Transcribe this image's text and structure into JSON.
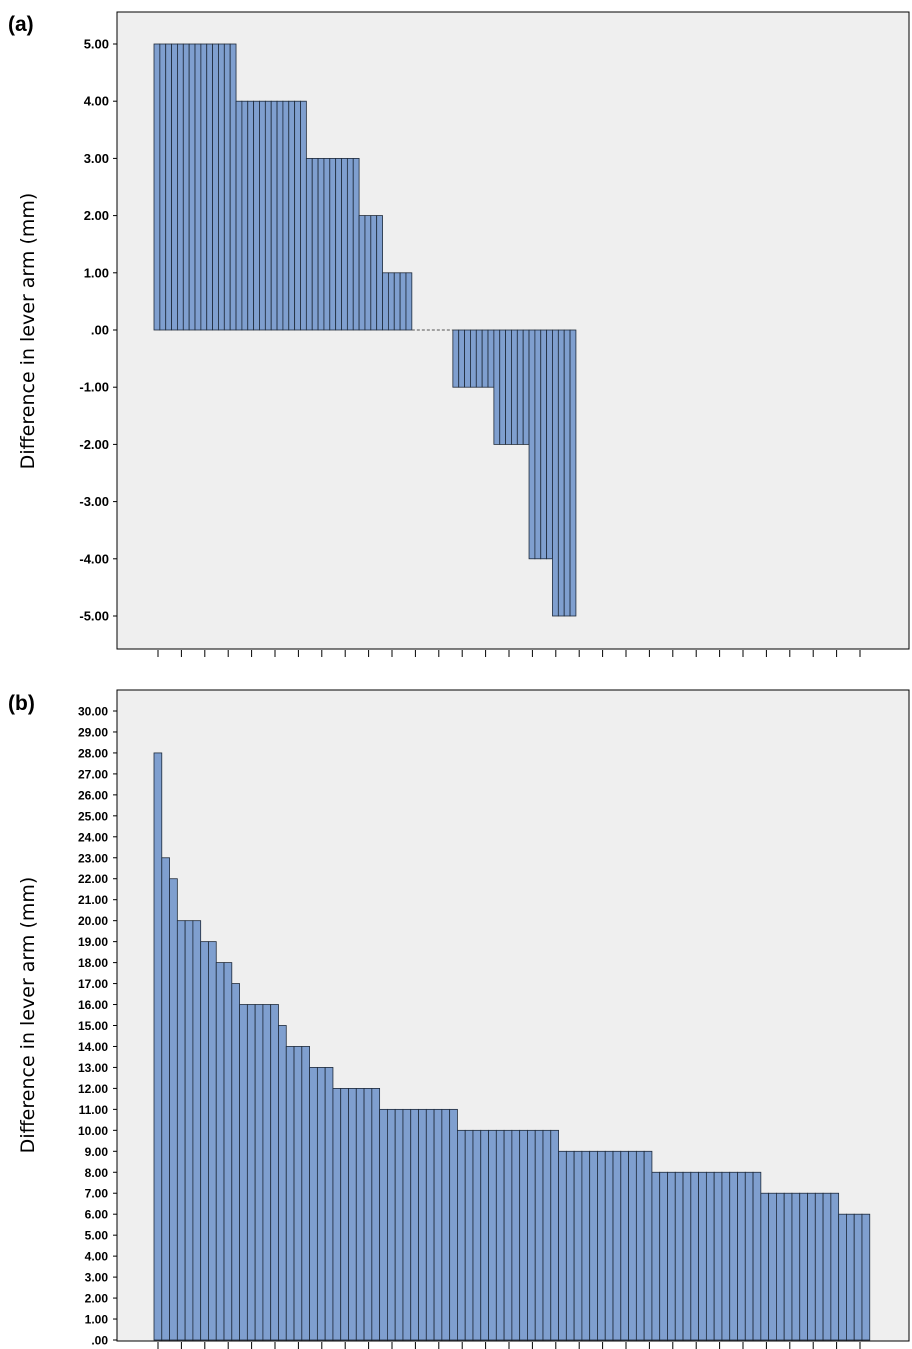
{
  "chart_data": [
    {
      "panel_label": "(a)",
      "type": "bar",
      "ylabel": "Difference in lever arm (mm)",
      "xlabel": "",
      "ylim": [
        -5,
        5
      ],
      "yticks": [
        "5.00",
        "4.00",
        "3.00",
        "2.00",
        "1.00",
        ".00",
        "-1.00",
        "-2.00",
        "-3.00",
        "-4.00",
        "-5.00"
      ],
      "grid": false,
      "legend": "none",
      "bar_color": "#7f9fcf",
      "background_color": "#efefef",
      "values": [
        5,
        5,
        5,
        5,
        5,
        5,
        5,
        5,
        5,
        5,
        5,
        5,
        5,
        5,
        4,
        4,
        4,
        4,
        4,
        4,
        4,
        4,
        4,
        4,
        4,
        4,
        3,
        3,
        3,
        3,
        3,
        3,
        3,
        3,
        3,
        2,
        2,
        2,
        2,
        1,
        1,
        1,
        1,
        1,
        0,
        0,
        0,
        0,
        0,
        0,
        0,
        -1,
        -1,
        -1,
        -1,
        -1,
        -1,
        -1,
        -2,
        -2,
        -2,
        -2,
        -2,
        -2,
        -4,
        -4,
        -4,
        -4,
        -5,
        -5,
        -5,
        -5
      ]
    },
    {
      "panel_label": "(b)",
      "type": "bar",
      "ylabel": "Difference in lever arm (mm)",
      "xlabel": "",
      "ylim": [
        0,
        30
      ],
      "yticks": [
        "30.00",
        "29.00",
        "28.00",
        "27.00",
        "26.00",
        "25.00",
        "24.00",
        "23.00",
        "22.00",
        "21.00",
        "20.00",
        "19.00",
        "18.00",
        "17.00",
        "16.00",
        "15.00",
        "14.00",
        "13.00",
        "12.00",
        "11.00",
        "10.00",
        "9.00",
        "8.00",
        "7.00",
        "6.00",
        "5.00",
        "4.00",
        "3.00",
        "2.00",
        "1.00",
        ".00"
      ],
      "grid": false,
      "legend": "none",
      "bar_color": "#7f9fcf",
      "background_color": "#efefef",
      "values": [
        28,
        23,
        22,
        20,
        20,
        20,
        19,
        19,
        18,
        18,
        17,
        16,
        16,
        16,
        16,
        16,
        15,
        14,
        14,
        14,
        13,
        13,
        13,
        12,
        12,
        12,
        12,
        12,
        12,
        11,
        11,
        11,
        11,
        11,
        11,
        11,
        11,
        11,
        11,
        10,
        10,
        10,
        10,
        10,
        10,
        10,
        10,
        10,
        10,
        10,
        10,
        10,
        9,
        9,
        9,
        9,
        9,
        9,
        9,
        9,
        9,
        9,
        9,
        9,
        8,
        8,
        8,
        8,
        8,
        8,
        8,
        8,
        8,
        8,
        8,
        8,
        8,
        8,
        7,
        7,
        7,
        7,
        7,
        7,
        7,
        7,
        7,
        7,
        6,
        6,
        6,
        6
      ]
    }
  ]
}
